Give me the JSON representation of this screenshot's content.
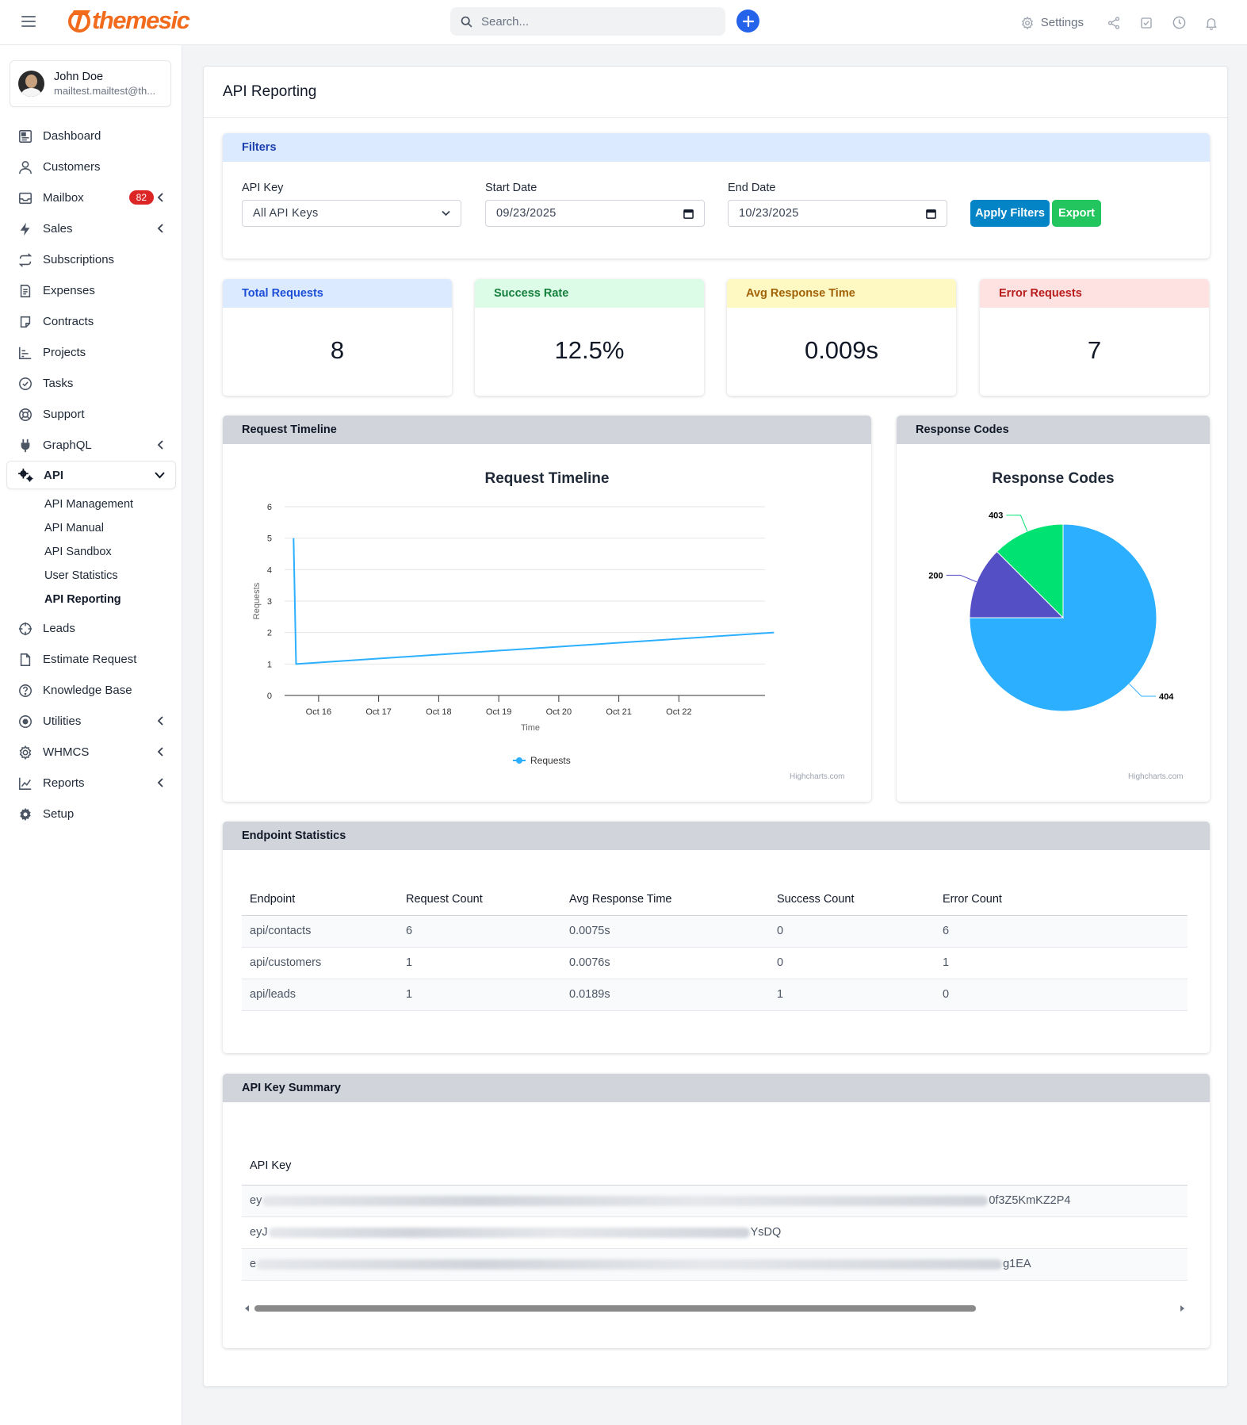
{
  "brand": {
    "name": "themesic"
  },
  "search": {
    "placeholder": "Search..."
  },
  "topbar": {
    "settings_label": "Settings"
  },
  "user": {
    "name": "John Doe",
    "email": "mailtest.mailtest@th..."
  },
  "sidebar": {
    "items": [
      {
        "label": "Dashboard",
        "icon": "dashboard-icon"
      },
      {
        "label": "Customers",
        "icon": "user-icon"
      },
      {
        "label": "Mailbox",
        "icon": "mailbox-icon",
        "badge": "82"
      },
      {
        "label": "Sales",
        "icon": "bolt-icon"
      },
      {
        "label": "Subscriptions",
        "icon": "repeat-icon"
      },
      {
        "label": "Expenses",
        "icon": "receipt-icon"
      },
      {
        "label": "Contracts",
        "icon": "contract-icon"
      },
      {
        "label": "Projects",
        "icon": "chart-bar-icon"
      },
      {
        "label": "Tasks",
        "icon": "check-circle-icon"
      },
      {
        "label": "Support",
        "icon": "lifebuoy-icon"
      },
      {
        "label": "GraphQL",
        "icon": "plug-icon"
      },
      {
        "label": "API",
        "icon": "cogs-icon"
      },
      {
        "label": "Leads",
        "icon": "crosshair-icon"
      },
      {
        "label": "Estimate Request",
        "icon": "file-icon"
      },
      {
        "label": "Knowledge Base",
        "icon": "question-circle-icon"
      },
      {
        "label": "Utilities",
        "icon": "dot-circle-icon"
      },
      {
        "label": "WHMCS",
        "icon": "gear-outline-icon"
      },
      {
        "label": "Reports",
        "icon": "line-chart-icon"
      },
      {
        "label": "Setup",
        "icon": "gear-icon"
      }
    ],
    "api_sub": [
      "API Management",
      "API Manual",
      "API Sandbox",
      "User Statistics",
      "API Reporting"
    ]
  },
  "page": {
    "title": "API Reporting"
  },
  "filters": {
    "title": "Filters",
    "api_key_label": "API Key",
    "api_key_value": "All API Keys",
    "start_label": "Start Date",
    "start_value": "09/23/2025",
    "end_label": "End Date",
    "end_value": "10/23/2025",
    "apply_label": "Apply Filters",
    "export_label": "Export"
  },
  "stats": [
    {
      "label": "Total Requests",
      "value": "8",
      "head_bg": "#dbeafe",
      "head_color": "#1d4ed8"
    },
    {
      "label": "Success Rate",
      "value": "12.5%",
      "head_bg": "#dcfce7",
      "head_color": "#15803d"
    },
    {
      "label": "Avg Response Time",
      "value": "0.009s",
      "head_bg": "#fef9c3",
      "head_color": "#a16207"
    },
    {
      "label": "Error Requests",
      "value": "7",
      "head_bg": "#fee2e2",
      "head_color": "#b91c1c"
    }
  ],
  "timeline": {
    "card_title": "Request Timeline",
    "credit": "Highcharts.com",
    "chart_data": {
      "type": "line",
      "title": "Request Timeline",
      "xlabel": "Time",
      "ylabel": "Requests",
      "y_ticks": [
        "0",
        "1",
        "2",
        "3",
        "4",
        "5",
        "6"
      ],
      "ylim": [
        0,
        6
      ],
      "x_ticks": [
        "Oct 16",
        "Oct 17",
        "Oct 18",
        "Oct 19",
        "Oct 20",
        "Oct 21",
        "Oct 22"
      ],
      "x": [
        "2025-10-15T14:00",
        "2025-10-15T15:00",
        "2025-10-23T14:00"
      ],
      "series": [
        {
          "name": "Requests",
          "values": [
            5,
            1,
            2
          ],
          "color": "#2caffe"
        }
      ],
      "legend": "bottom-center",
      "grid": true
    }
  },
  "codes": {
    "card_title": "Response Codes",
    "credit": "Highcharts.com",
    "chart_data": {
      "type": "pie",
      "title": "Response Codes",
      "slices": [
        {
          "label": "404",
          "value": 6,
          "color": "#2caffe"
        },
        {
          "label": "200",
          "value": 1,
          "color": "#544fc5"
        },
        {
          "label": "403",
          "value": 1,
          "color": "#00e272"
        }
      ]
    }
  },
  "endpoints": {
    "title": "Endpoint Statistics",
    "columns": [
      "Endpoint",
      "Request Count",
      "Avg Response Time",
      "Success Count",
      "Error Count"
    ],
    "rows": [
      [
        "api/contacts",
        "6",
        "0.0075s",
        "0",
        "6"
      ],
      [
        "api/customers",
        "1",
        "0.0076s",
        "0",
        "1"
      ],
      [
        "api/leads",
        "1",
        "0.0189s",
        "1",
        "0"
      ]
    ]
  },
  "apikeys": {
    "title": "API Key Summary",
    "column": "API Key",
    "rows": [
      {
        "start": "ey",
        "end": "0f3Z5KmKZ2P4"
      },
      {
        "start": "eyJ",
        "end": "YsDQ"
      },
      {
        "start": "e",
        "end": "g1EA"
      }
    ]
  }
}
